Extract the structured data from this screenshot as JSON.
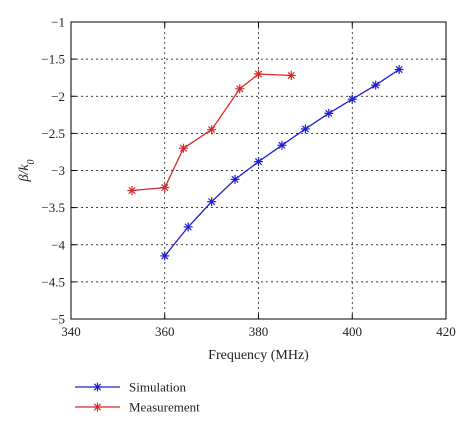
{
  "chart_data": {
    "type": "line",
    "title": "",
    "xlabel": "Frequency (MHz)",
    "ylabel": "β/k0",
    "ylabel_main": "β/k",
    "ylabel_sub": "0",
    "xlim": [
      340,
      420
    ],
    "ylim": [
      -5,
      -1
    ],
    "xticks": [
      340,
      360,
      380,
      400,
      420
    ],
    "xtick_labels": [
      "340",
      "360",
      "380",
      "400",
      "420"
    ],
    "yticks": [
      -1,
      -1.5,
      -2,
      -2.5,
      -3,
      -3.5,
      -4,
      -4.5,
      -5
    ],
    "ytick_labels": [
      "−1",
      "−1.5",
      "−2",
      "−2.5",
      "−3",
      "−3.5",
      "−4",
      "−4.5",
      "−5"
    ],
    "grid": true,
    "legend_placement": "bottom-left outside",
    "marker": "asterisk",
    "series": [
      {
        "name": "Simulation",
        "color": "#1f1fcc",
        "x": [
          360,
          365,
          370,
          375,
          380,
          385,
          390,
          395,
          400,
          405,
          410
        ],
        "y": [
          -4.15,
          -3.76,
          -3.42,
          -3.12,
          -2.88,
          -2.66,
          -2.44,
          -2.23,
          -2.04,
          -1.85,
          -1.64
        ]
      },
      {
        "name": "Measurement",
        "color": "#d42a2a",
        "x": [
          353,
          360,
          364,
          370,
          376,
          380,
          387
        ],
        "y": [
          -3.27,
          -3.23,
          -2.7,
          -2.45,
          -1.9,
          -1.7,
          -1.72
        ]
      }
    ]
  }
}
